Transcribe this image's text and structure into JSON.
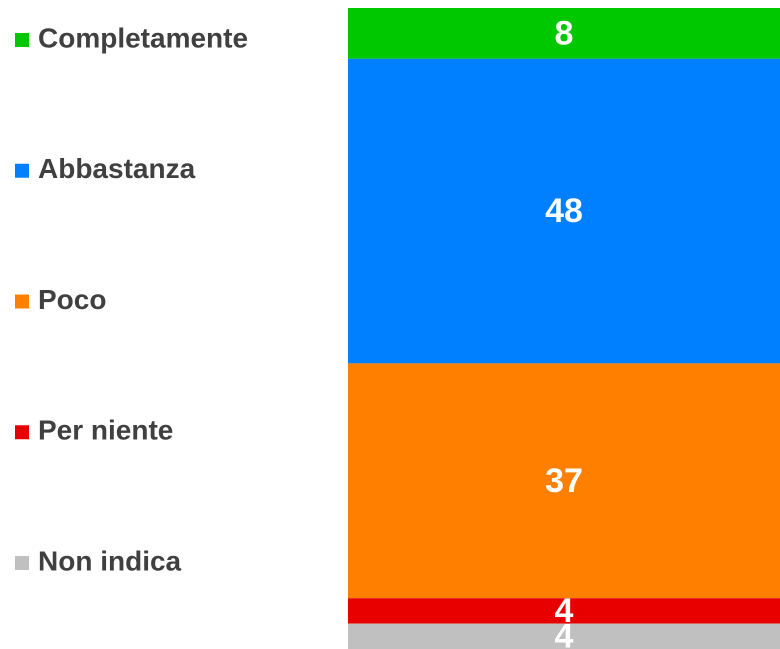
{
  "chart_data": {
    "type": "bar",
    "stacked": true,
    "series": [
      {
        "name": "Completamente",
        "color": "#00c800",
        "values": [
          8
        ]
      },
      {
        "name": "Abbastanza",
        "color": "#0080ff",
        "values": [
          48
        ]
      },
      {
        "name": "Poco",
        "color": "#ff8000",
        "values": [
          37
        ]
      },
      {
        "name": "Per niente",
        "color": "#e80000",
        "values": [
          4
        ]
      },
      {
        "name": "Non indica",
        "color": "#c0c0c0",
        "values": [
          4
        ]
      }
    ]
  }
}
